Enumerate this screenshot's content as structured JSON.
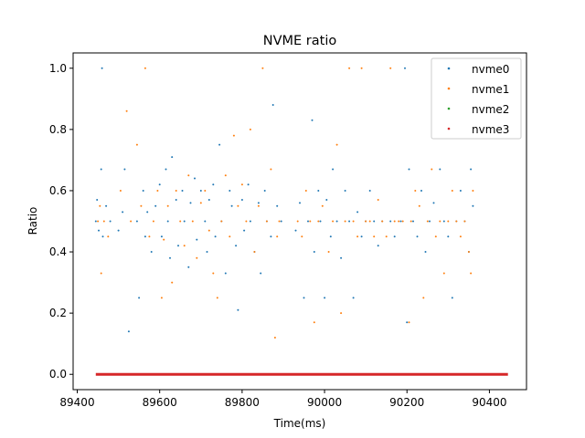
{
  "chart_data": {
    "type": "scatter",
    "title": "NVME ratio",
    "xlabel": "Time(ms)",
    "ylabel": "Ratio",
    "xlim": [
      89390,
      90490
    ],
    "ylim": [
      -0.05,
      1.05
    ],
    "xticks": [
      89400,
      89600,
      89800,
      90000,
      90200,
      90400
    ],
    "yticks": [
      0.0,
      0.2,
      0.4,
      0.6,
      0.8,
      1.0
    ],
    "xtick_labels": [
      "89400",
      "89600",
      "89800",
      "90000",
      "90200",
      "90400"
    ],
    "ytick_labels": [
      "0.0",
      "0.2",
      "0.4",
      "0.6",
      "0.8",
      "1.0"
    ],
    "grid": false,
    "legend_position": "top-right",
    "series": [
      {
        "name": "nvme0",
        "color": "#1f77b4",
        "points": [
          [
            89445,
            0.5
          ],
          [
            89448,
            0.57
          ],
          [
            89452,
            0.47
          ],
          [
            89460,
            1.0
          ],
          [
            89458,
            0.67
          ],
          [
            89462,
            0.45
          ],
          [
            89470,
            0.55
          ],
          [
            89480,
            0.5
          ],
          [
            89500,
            0.47
          ],
          [
            89510,
            0.53
          ],
          [
            89515,
            0.67
          ],
          [
            89525,
            0.14
          ],
          [
            89545,
            0.5
          ],
          [
            89550,
            0.25
          ],
          [
            89560,
            0.6
          ],
          [
            89565,
            0.45
          ],
          [
            89570,
            0.53
          ],
          [
            89580,
            0.4
          ],
          [
            89590,
            0.55
          ],
          [
            89600,
            0.62
          ],
          [
            89605,
            0.45
          ],
          [
            89615,
            0.67
          ],
          [
            89620,
            0.5
          ],
          [
            89625,
            0.38
          ],
          [
            89630,
            0.71
          ],
          [
            89640,
            0.57
          ],
          [
            89645,
            0.42
          ],
          [
            89655,
            0.6
          ],
          [
            89660,
            0.5
          ],
          [
            89670,
            0.35
          ],
          [
            89675,
            0.56
          ],
          [
            89685,
            0.64
          ],
          [
            89690,
            0.44
          ],
          [
            89700,
            0.6
          ],
          [
            89710,
            0.5
          ],
          [
            89715,
            0.4
          ],
          [
            89720,
            0.57
          ],
          [
            89730,
            0.62
          ],
          [
            89735,
            0.45
          ],
          [
            89745,
            0.75
          ],
          [
            89750,
            0.5
          ],
          [
            89760,
            0.33
          ],
          [
            89770,
            0.6
          ],
          [
            89775,
            0.55
          ],
          [
            89785,
            0.42
          ],
          [
            89790,
            0.21
          ],
          [
            89800,
            0.57
          ],
          [
            89805,
            0.47
          ],
          [
            89815,
            0.62
          ],
          [
            89820,
            0.5
          ],
          [
            89830,
            0.4
          ],
          [
            89840,
            0.56
          ],
          [
            89845,
            0.33
          ],
          [
            89855,
            0.6
          ],
          [
            89860,
            0.5
          ],
          [
            89870,
            0.45
          ],
          [
            89875,
            0.88
          ],
          [
            89885,
            0.55
          ],
          [
            89895,
            0.5
          ],
          [
            89930,
            0.47
          ],
          [
            89940,
            0.56
          ],
          [
            89950,
            0.25
          ],
          [
            89960,
            0.5
          ],
          [
            89970,
            0.83
          ],
          [
            89975,
            0.4
          ],
          [
            89985,
            0.6
          ],
          [
            89990,
            0.5
          ],
          [
            90000,
            0.25
          ],
          [
            90005,
            0.57
          ],
          [
            90015,
            0.45
          ],
          [
            90020,
            0.67
          ],
          [
            90030,
            0.5
          ],
          [
            90040,
            0.38
          ],
          [
            90050,
            0.6
          ],
          [
            90060,
            0.5
          ],
          [
            90070,
            0.25
          ],
          [
            90080,
            0.53
          ],
          [
            90090,
            0.45
          ],
          [
            90100,
            0.5
          ],
          [
            90110,
            0.6
          ],
          [
            90120,
            0.5
          ],
          [
            90130,
            0.42
          ],
          [
            90140,
            0.5
          ],
          [
            90160,
            0.5
          ],
          [
            90170,
            0.45
          ],
          [
            90185,
            0.5
          ],
          [
            90195,
            1.0
          ],
          [
            90200,
            0.17
          ],
          [
            90205,
            0.67
          ],
          [
            90215,
            0.5
          ],
          [
            90225,
            0.45
          ],
          [
            90235,
            0.6
          ],
          [
            90245,
            0.4
          ],
          [
            90255,
            0.5
          ],
          [
            90265,
            0.56
          ],
          [
            90280,
            0.67
          ],
          [
            90290,
            0.5
          ],
          [
            90300,
            0.45
          ],
          [
            90310,
            0.25
          ],
          [
            90320,
            0.5
          ],
          [
            90330,
            0.6
          ],
          [
            90340,
            0.5
          ],
          [
            90350,
            0.4
          ],
          [
            90355,
            0.67
          ],
          [
            90360,
            0.55
          ]
        ]
      },
      {
        "name": "nvme1",
        "color": "#ff7f0e",
        "points": [
          [
            89450,
            0.5
          ],
          [
            89455,
            0.55
          ],
          [
            89458,
            0.33
          ],
          [
            89465,
            0.5
          ],
          [
            89475,
            0.45
          ],
          [
            89505,
            0.6
          ],
          [
            89520,
            0.86
          ],
          [
            89530,
            0.5
          ],
          [
            89545,
            0.75
          ],
          [
            89555,
            0.55
          ],
          [
            89565,
            1.0
          ],
          [
            89575,
            0.45
          ],
          [
            89585,
            0.5
          ],
          [
            89595,
            0.6
          ],
          [
            89605,
            0.25
          ],
          [
            89610,
            0.44
          ],
          [
            89620,
            0.55
          ],
          [
            89630,
            0.3
          ],
          [
            89640,
            0.6
          ],
          [
            89650,
            0.5
          ],
          [
            89660,
            0.42
          ],
          [
            89670,
            0.65
          ],
          [
            89680,
            0.5
          ],
          [
            89690,
            0.38
          ],
          [
            89700,
            0.56
          ],
          [
            89710,
            0.6
          ],
          [
            89720,
            0.47
          ],
          [
            89730,
            0.33
          ],
          [
            89740,
            0.25
          ],
          [
            89750,
            0.5
          ],
          [
            89760,
            0.65
          ],
          [
            89770,
            0.45
          ],
          [
            89780,
            0.78
          ],
          [
            89790,
            0.55
          ],
          [
            89800,
            0.62
          ],
          [
            89810,
            0.5
          ],
          [
            89820,
            0.8
          ],
          [
            89830,
            0.4
          ],
          [
            89840,
            0.55
          ],
          [
            89850,
            1.0
          ],
          [
            89860,
            0.5
          ],
          [
            89870,
            0.67
          ],
          [
            89880,
            0.12
          ],
          [
            89885,
            0.45
          ],
          [
            89890,
            0.5
          ],
          [
            89935,
            0.5
          ],
          [
            89945,
            0.45
          ],
          [
            89955,
            0.6
          ],
          [
            89965,
            0.5
          ],
          [
            89975,
            0.17
          ],
          [
            89985,
            0.5
          ],
          [
            89995,
            0.55
          ],
          [
            90010,
            0.4
          ],
          [
            90020,
            0.5
          ],
          [
            90030,
            0.75
          ],
          [
            90040,
            0.2
          ],
          [
            90050,
            0.5
          ],
          [
            90060,
            1.0
          ],
          [
            90070,
            0.5
          ],
          [
            90080,
            0.45
          ],
          [
            90090,
            1.0
          ],
          [
            90100,
            0.5
          ],
          [
            90110,
            0.5
          ],
          [
            90120,
            0.45
          ],
          [
            90130,
            0.57
          ],
          [
            90140,
            0.5
          ],
          [
            90150,
            0.45
          ],
          [
            90160,
            1.0
          ],
          [
            90170,
            0.5
          ],
          [
            90180,
            0.5
          ],
          [
            90190,
            0.5
          ],
          [
            90205,
            0.17
          ],
          [
            90210,
            0.5
          ],
          [
            90220,
            0.6
          ],
          [
            90230,
            0.55
          ],
          [
            90240,
            0.25
          ],
          [
            90250,
            0.5
          ],
          [
            90260,
            0.67
          ],
          [
            90270,
            0.45
          ],
          [
            90280,
            0.5
          ],
          [
            90290,
            0.33
          ],
          [
            90300,
            0.5
          ],
          [
            90310,
            0.6
          ],
          [
            90320,
            0.5
          ],
          [
            90330,
            0.45
          ],
          [
            90340,
            0.5
          ],
          [
            90350,
            0.4
          ],
          [
            90355,
            0.33
          ],
          [
            90360,
            0.6
          ]
        ]
      },
      {
        "name": "nvme2",
        "color": "#2ca02c",
        "points": []
      },
      {
        "name": "nvme3",
        "color": "#d62728",
        "x_range": [
          89445,
          90445
        ],
        "y_constant": 0.0
      }
    ]
  }
}
